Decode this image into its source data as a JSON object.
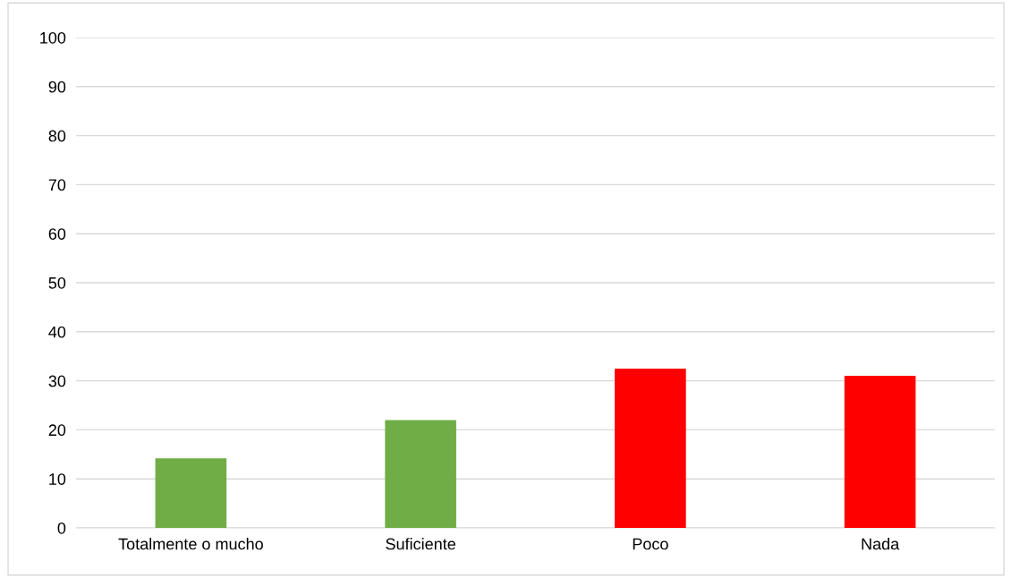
{
  "chart_data": {
    "type": "bar",
    "categories": [
      "Totalmente o mucho",
      "Suficiente",
      "Poco",
      "Nada"
    ],
    "values": [
      14.2,
      22,
      32.5,
      31
    ],
    "colors": [
      "#70ad47",
      "#70ad47",
      "#ff0000",
      "#ff0000"
    ],
    "ylim": [
      0,
      100
    ],
    "yticks": [
      0,
      10,
      20,
      30,
      40,
      50,
      60,
      70,
      80,
      90,
      100
    ],
    "grid": "y",
    "legend": false
  }
}
